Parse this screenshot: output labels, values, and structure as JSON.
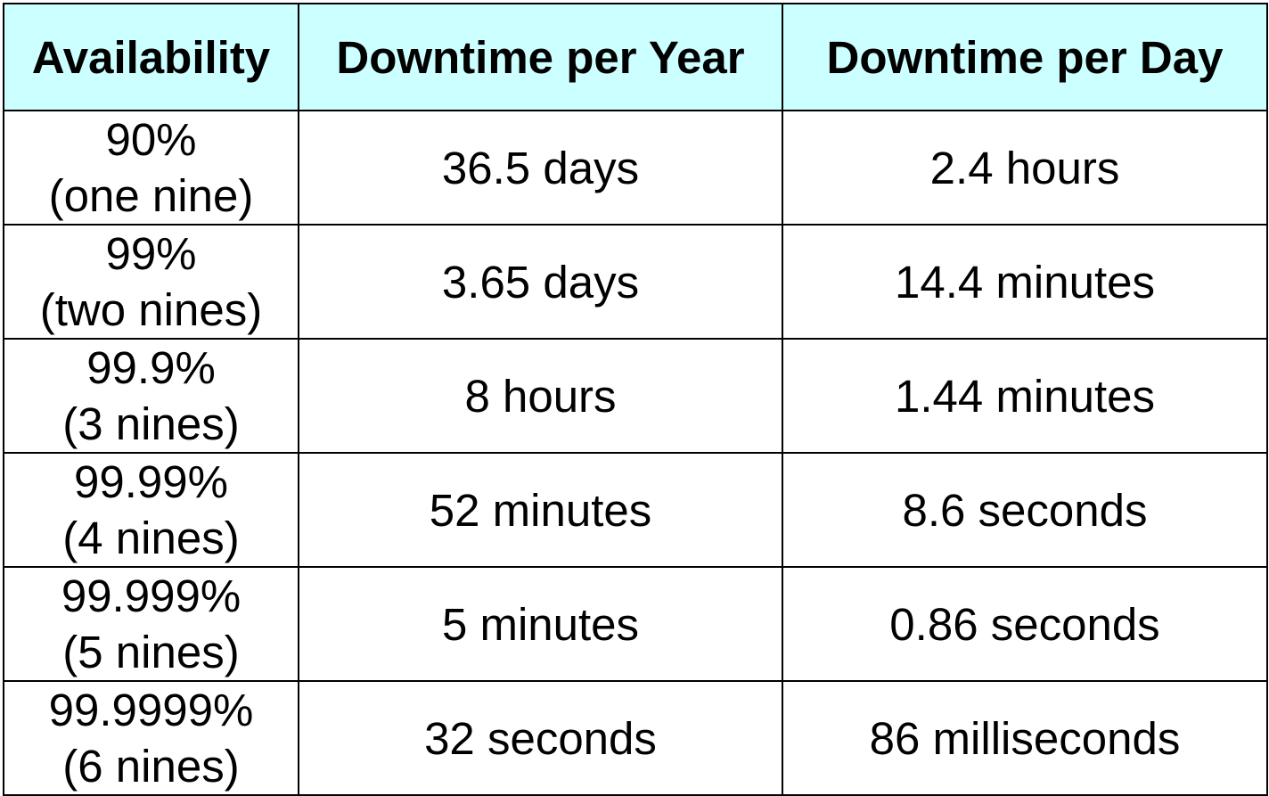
{
  "colors": {
    "header_background": "#ccffff",
    "border": "#000000",
    "text": "#000000",
    "body_background": "#ffffff"
  },
  "table": {
    "headers": [
      "Availability",
      "Downtime per Year",
      "Downtime per Day"
    ],
    "rows": [
      {
        "availability": "90%",
        "nines": "(one nine)",
        "per_year": "36.5 days",
        "per_day": "2.4 hours"
      },
      {
        "availability": "99%",
        "nines": "(two nines)",
        "per_year": "3.65 days",
        "per_day": "14.4 minutes"
      },
      {
        "availability": "99.9%",
        "nines": "(3 nines)",
        "per_year": "8 hours",
        "per_day": "1.44 minutes"
      },
      {
        "availability": "99.99%",
        "nines": "(4 nines)",
        "per_year": "52 minutes",
        "per_day": "8.6 seconds"
      },
      {
        "availability": "99.999%",
        "nines": "(5 nines)",
        "per_year": "5 minutes",
        "per_day": "0.86 seconds"
      },
      {
        "availability": "99.9999%",
        "nines": "(6 nines)",
        "per_year": "32 seconds",
        "per_day": "86 milliseconds"
      }
    ]
  }
}
